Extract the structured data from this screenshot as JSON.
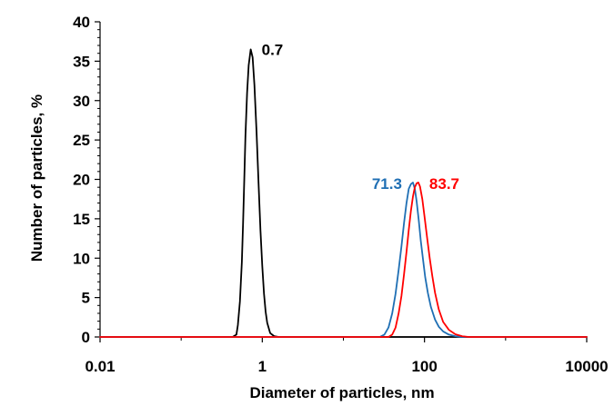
{
  "chart_data": {
    "type": "line",
    "title": "",
    "xlabel": "Diameter of particles, nm",
    "ylabel": "Number of particles, %",
    "xscale": "log",
    "xlim": [
      0.01,
      10000
    ],
    "ylim": [
      0,
      40
    ],
    "x_ticks": [
      "0.01",
      "1",
      "100",
      "10000"
    ],
    "y_ticks": [
      "0",
      "5",
      "10",
      "15",
      "20",
      "25",
      "30",
      "35",
      "40"
    ],
    "grid": false,
    "legend": "none",
    "series": [
      {
        "color": "#000000",
        "peak_label": "0.7",
        "x": [
          0.01,
          0.35,
          0.43,
          0.48,
          0.5,
          0.53,
          0.56,
          0.58,
          0.6,
          0.62,
          0.65,
          0.68,
          0.72,
          0.76,
          0.8,
          0.85,
          0.9,
          0.95,
          1.0,
          1.05,
          1.1,
          1.15,
          1.25,
          1.4,
          1.6,
          10000
        ],
        "y": [
          0,
          0,
          0,
          0.3,
          1.5,
          4.5,
          9.5,
          14.5,
          20,
          25.5,
          31,
          34.5,
          36.5,
          35.5,
          32,
          26,
          19.5,
          13.5,
          9,
          5.5,
          3.2,
          1.8,
          0.5,
          0.1,
          0,
          0
        ]
      },
      {
        "color": "#1f6fb4",
        "peak_label": "71.3",
        "x": [
          0.01,
          28,
          32,
          36,
          40,
          44,
          48,
          52,
          56,
          60,
          64,
          68,
          72,
          76,
          80,
          85,
          90,
          96,
          102,
          110,
          120,
          135,
          150,
          170,
          200,
          240,
          280,
          10000
        ],
        "y": [
          0,
          0,
          0.3,
          1.2,
          3,
          5.5,
          8.5,
          11.5,
          14.5,
          17,
          18.8,
          19.4,
          19.6,
          18.8,
          17.2,
          14.8,
          12.2,
          9.8,
          7.6,
          5.6,
          3.8,
          2.2,
          1.3,
          0.7,
          0.3,
          0.1,
          0,
          0
        ]
      },
      {
        "color": "#ff0000",
        "peak_label": "83.7",
        "x": [
          0.01,
          36,
          40,
          44,
          48,
          52,
          56,
          60,
          64,
          68,
          72,
          76,
          80,
          84,
          88,
          94,
          100,
          108,
          116,
          125,
          135,
          150,
          170,
          200,
          240,
          290,
          350,
          10000
        ],
        "y": [
          0,
          0,
          0.3,
          1.2,
          3,
          5.2,
          8,
          10.8,
          13.6,
          16,
          17.8,
          19,
          19.5,
          19.6,
          19.1,
          17.5,
          15.3,
          12.5,
          10,
          7.7,
          5.6,
          3.5,
          1.9,
          0.9,
          0.35,
          0.1,
          0,
          0
        ]
      }
    ]
  }
}
